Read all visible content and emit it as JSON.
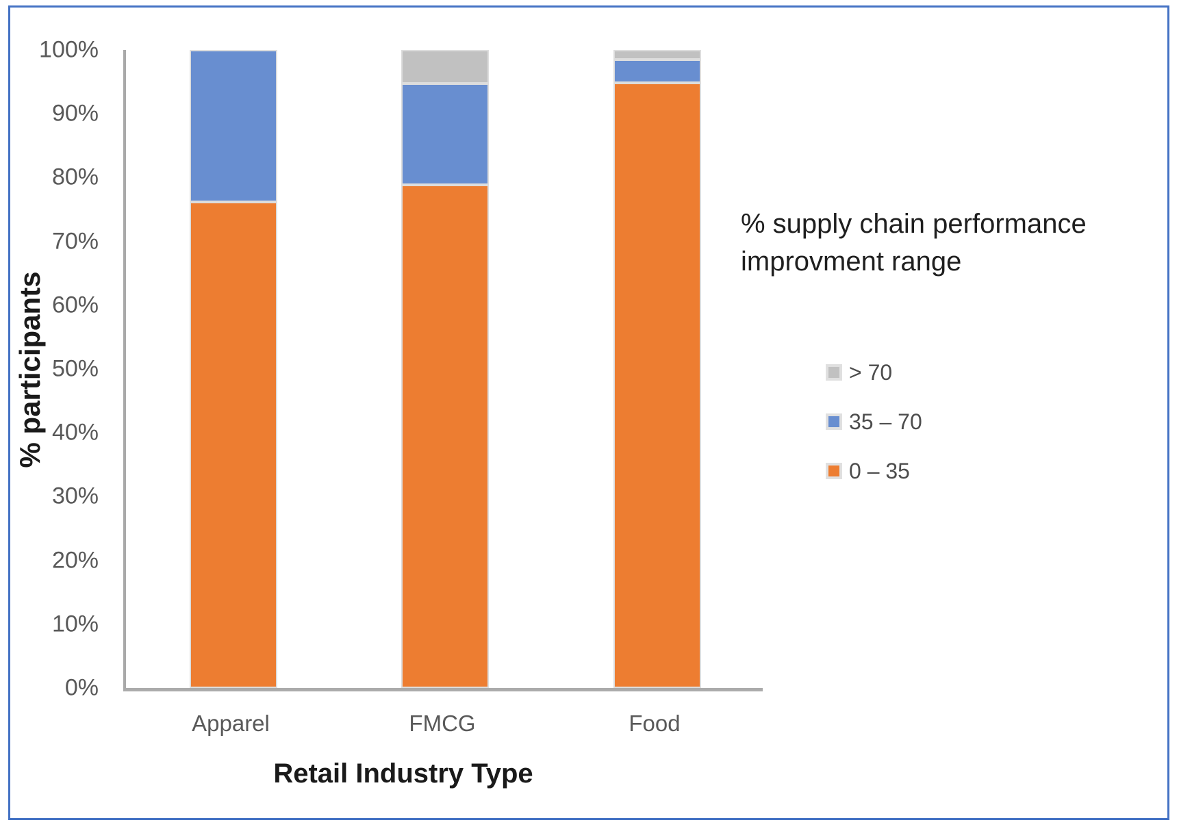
{
  "colors": {
    "orange": "#ED7D31",
    "blue": "#688ED0",
    "gray": "#C1C1C1",
    "figure_border": "#4472C4",
    "axis_line": "#A9A9A9",
    "segment_border": "#DDDDDD",
    "tick_text": "#595959",
    "title_text": "#1a1a1a",
    "legend_text": "#4D4D4D"
  },
  "chart_data": {
    "type": "bar",
    "stacked": true,
    "stacked_100_percent": true,
    "title": "",
    "xlabel": "Retail Industry Type",
    "ylabel": "% participants",
    "legend_title": "% supply chain performance improvment range",
    "legend_position": "right",
    "grid": false,
    "categories": [
      "Apparel",
      "FMCG",
      "Food"
    ],
    "series": [
      {
        "name": "> 70",
        "color": "#C1C1C1",
        "values": [
          0,
          5.3,
          1.5
        ]
      },
      {
        "name": "35 – 70",
        "color": "#688ED0",
        "values": [
          23.8,
          15.8,
          3.7
        ]
      },
      {
        "name": "0 – 35",
        "color": "#ED7D31",
        "values": [
          76.2,
          78.9,
          94.8
        ]
      }
    ],
    "ylim": [
      0,
      100
    ],
    "yticks": [
      "100%",
      "90%",
      "80%",
      "70%",
      "60%",
      "50%",
      "40%",
      "30%",
      "20%",
      "10%",
      "0%"
    ]
  }
}
